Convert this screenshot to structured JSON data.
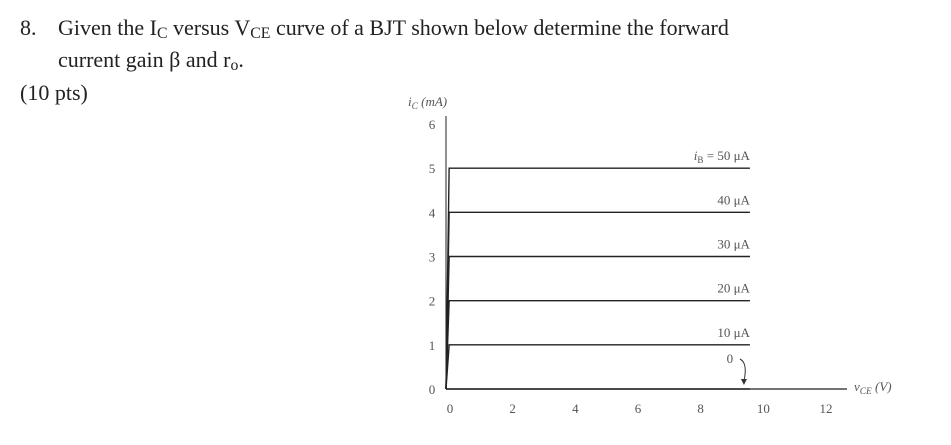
{
  "question": {
    "number": "8.",
    "lines": [
      [
        "Given the I",
        "C",
        " versus V",
        "CE",
        " curve of a BJT shown below determine the forward"
      ],
      [
        "current gain β and r",
        "o",
        "."
      ]
    ],
    "points": "(10 pts)"
  },
  "chart_data": {
    "type": "line",
    "ylabel": [
      "i",
      "C",
      " (mA)"
    ],
    "xlabel": [
      "v",
      "CE",
      " (V)"
    ],
    "series_prefix": [
      "i",
      "B",
      " = "
    ],
    "x": [
      0,
      0.1,
      9.7
    ],
    "series": [
      {
        "name": "50 μA",
        "values": [
          0,
          5,
          5
        ]
      },
      {
        "name": "40 μA",
        "values": [
          0,
          4,
          4
        ]
      },
      {
        "name": "30 μA",
        "values": [
          0,
          3,
          3
        ]
      },
      {
        "name": "20 μA",
        "values": [
          0,
          2,
          2
        ]
      },
      {
        "name": "10 μA",
        "values": [
          0,
          1,
          1
        ]
      },
      {
        "name": "0",
        "values": [
          0,
          0,
          0
        ]
      }
    ],
    "color": "#222",
    "xlim": [
      0,
      12
    ],
    "ylim": [
      0,
      6
    ],
    "xticks": [
      0,
      2,
      4,
      6,
      8,
      10,
      12
    ],
    "yticks": [
      0,
      1,
      2,
      3,
      4,
      5,
      6
    ]
  }
}
